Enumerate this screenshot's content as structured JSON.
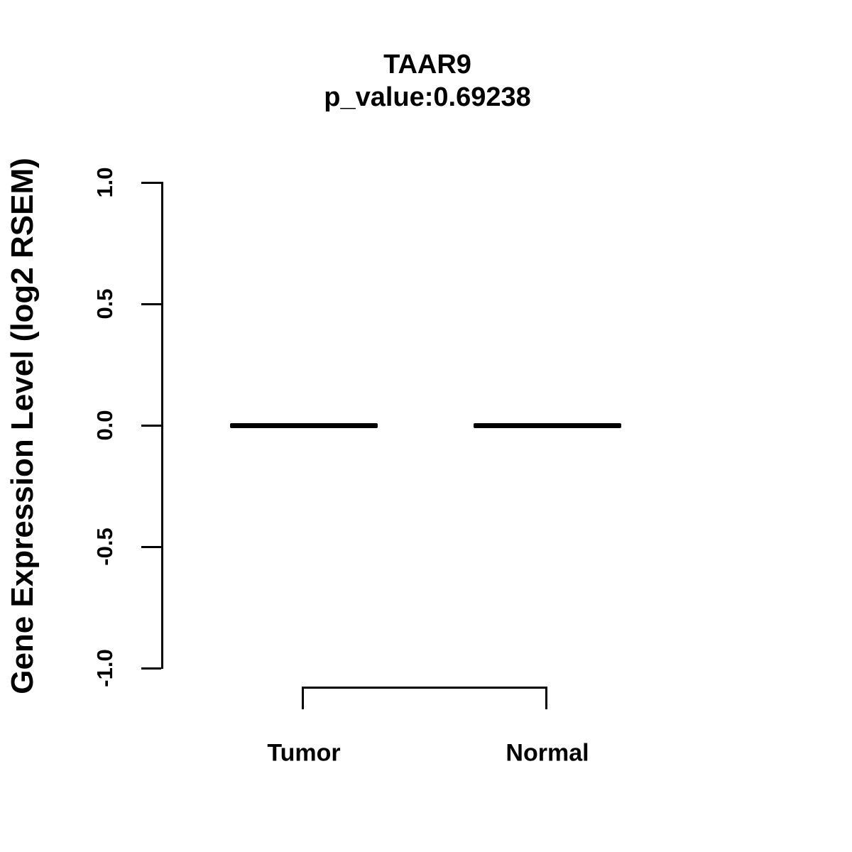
{
  "title": {
    "gene": "TAAR9",
    "p_value_text": "p_value:0.69238"
  },
  "y_axis": {
    "label": "Gene Expression Level (log2 RSEM)",
    "tick_labels": [
      "1.0",
      "0.5",
      "0.0",
      "-0.5",
      "-1.0"
    ],
    "tick_values": [
      1.0,
      0.5,
      0.0,
      -0.5,
      -1.0
    ],
    "range": [
      -1.0,
      1.0
    ]
  },
  "x_axis": {
    "categories": [
      "Tumor",
      "Normal"
    ]
  },
  "chart_data": {
    "type": "boxplot",
    "title": "TAAR9",
    "subtitle": "p_value:0.69238",
    "categories": [
      "Tumor",
      "Normal"
    ],
    "series": [
      {
        "name": "Tumor",
        "median": 0.0,
        "q1": 0.0,
        "q3": 0.0,
        "min": 0.0,
        "max": 0.0
      },
      {
        "name": "Normal",
        "median": 0.0,
        "q1": 0.0,
        "q3": 0.0,
        "min": 0.0,
        "max": 0.0
      }
    ],
    "xlabel": "",
    "ylabel": "Gene Expression Level (log2 RSEM)",
    "ylim": [
      -1.0,
      1.0
    ],
    "yticks": [
      1.0,
      0.5,
      0.0,
      -0.5,
      -1.0
    ],
    "grid": false,
    "legend": "none",
    "comparison_bracket": {
      "from": "Tumor",
      "to": "Normal"
    },
    "colors": {
      "foreground": "#000000",
      "background": "#ffffff"
    }
  }
}
